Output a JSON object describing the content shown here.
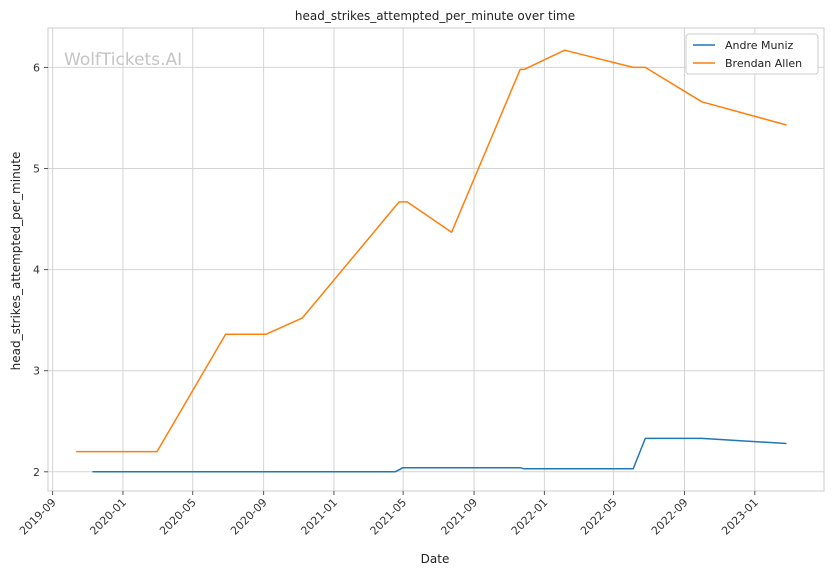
{
  "chart_data": {
    "type": "line",
    "title": "head_strikes_attempted_per_minute over time",
    "xlabel": "Date",
    "ylabel": "head_strikes_attempted_per_minute",
    "watermark": "WolfTickets.AI",
    "grid": true,
    "legend_position": "top-right",
    "x_range": [
      "2019-08-24",
      "2023-05-01"
    ],
    "ylim": [
      1.81,
      6.39
    ],
    "x_ticks": [
      "2019-09",
      "2020-01",
      "2020-05",
      "2020-09",
      "2021-01",
      "2021-05",
      "2021-09",
      "2022-01",
      "2022-05",
      "2022-09",
      "2023-01"
    ],
    "y_ticks": [
      2,
      3,
      4,
      5,
      6
    ],
    "series": [
      {
        "name": "Andre Muniz",
        "color": "#1f77b4",
        "points": [
          {
            "x": "2019-11-09",
            "y": 2.0
          },
          {
            "x": "2021-04-17",
            "y": 2.0
          },
          {
            "x": "2021-05-01",
            "y": 2.04
          },
          {
            "x": "2021-11-20",
            "y": 2.04
          },
          {
            "x": "2021-11-27",
            "y": 2.03
          },
          {
            "x": "2022-06-04",
            "y": 2.03
          },
          {
            "x": "2022-06-25",
            "y": 2.33
          },
          {
            "x": "2022-10-01",
            "y": 2.33
          },
          {
            "x": "2023-02-25",
            "y": 2.28
          }
        ]
      },
      {
        "name": "Brendan Allen",
        "color": "#ff7f0e",
        "points": [
          {
            "x": "2019-10-12",
            "y": 2.2
          },
          {
            "x": "2020-02-29",
            "y": 2.2
          },
          {
            "x": "2020-06-27",
            "y": 3.36
          },
          {
            "x": "2020-09-05",
            "y": 3.36
          },
          {
            "x": "2020-11-07",
            "y": 3.52
          },
          {
            "x": "2021-04-24",
            "y": 4.67
          },
          {
            "x": "2021-05-08",
            "y": 4.67
          },
          {
            "x": "2021-07-24",
            "y": 4.37
          },
          {
            "x": "2021-11-20",
            "y": 5.98
          },
          {
            "x": "2021-11-27",
            "y": 5.98
          },
          {
            "x": "2022-02-05",
            "y": 6.17
          },
          {
            "x": "2022-06-04",
            "y": 6.0
          },
          {
            "x": "2022-06-25",
            "y": 6.0
          },
          {
            "x": "2022-10-01",
            "y": 5.66
          },
          {
            "x": "2023-02-25",
            "y": 5.43
          }
        ]
      }
    ]
  }
}
